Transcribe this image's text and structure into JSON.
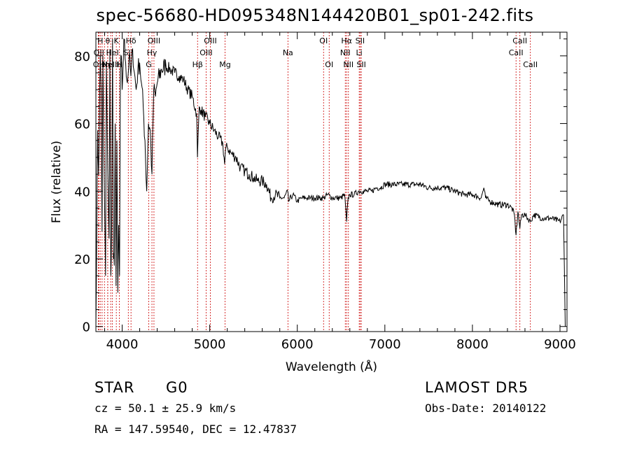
{
  "chart_data": {
    "type": "line",
    "title": "spec-56680-HD095348N144420B01_sp01-242.fits",
    "xlabel": "Wavelength (Å)",
    "ylabel": "Flux (relative)",
    "xlim": [
      3700,
      9080
    ],
    "ylim": [
      -1.5,
      87
    ],
    "xticks": [
      4000,
      5000,
      6000,
      7000,
      8000,
      9000
    ],
    "yticks": [
      0,
      20,
      40,
      60,
      80
    ],
    "tick_labels_x": [
      "4000",
      "5000",
      "6000",
      "7000",
      "8000",
      "9000"
    ],
    "tick_labels_y": [
      "0",
      "20",
      "40",
      "60",
      "80"
    ],
    "grid": false,
    "series": [
      {
        "x": [
          3700,
          3710,
          3720,
          3730,
          3740,
          3750,
          3760,
          3770,
          3780,
          3790,
          3800,
          3810,
          3820,
          3830,
          3840,
          3850,
          3860,
          3870,
          3880,
          3890,
          3900,
          3910,
          3920,
          3930,
          3940,
          3950,
          3960,
          3970,
          3980,
          3990,
          4000,
          4020,
          4040,
          4060,
          4080,
          4100,
          4120,
          4140,
          4160,
          4180,
          4200,
          4220,
          4240,
          4260,
          4280,
          4300,
          4320,
          4340,
          4360,
          4380,
          4400,
          4450,
          4500,
          4550,
          4600,
          4650,
          4700,
          4750,
          4800,
          4850,
          4860,
          4880,
          4900,
          4950,
          5000,
          5050,
          5100,
          5150,
          5170,
          5180,
          5200,
          5250,
          5300,
          5350,
          5400,
          5450,
          5500,
          5550,
          5600,
          5650,
          5700,
          5750,
          5800,
          5850,
          5890,
          5900,
          5950,
          6000,
          6050,
          6100,
          6150,
          6200,
          6250,
          6300,
          6350,
          6400,
          6450,
          6500,
          6540,
          6563,
          6580,
          6600,
          6650,
          6700,
          6750,
          6800,
          6850,
          6900,
          6950,
          7000,
          7100,
          7200,
          7300,
          7400,
          7500,
          7600,
          7700,
          7800,
          7900,
          8000,
          8100,
          8130,
          8150,
          8200,
          8300,
          8400,
          8450,
          8480,
          8498,
          8520,
          8542,
          8560,
          8600,
          8662,
          8700,
          8800,
          8900,
          9000,
          9040,
          9050,
          9060
        ],
        "y": [
          0,
          30,
          58,
          45,
          62,
          80,
          70,
          28,
          80,
          52,
          35,
          15,
          78,
          56,
          40,
          26,
          82,
          15,
          30,
          85,
          20,
          18,
          60,
          12,
          55,
          10,
          30,
          15,
          75,
          80,
          70,
          85,
          78,
          72,
          80,
          74,
          82,
          75,
          70,
          76,
          78,
          72,
          65,
          55,
          40,
          60,
          58,
          45,
          70,
          68,
          72,
          76,
          77,
          76,
          75,
          74,
          73,
          70,
          68,
          63,
          50,
          65,
          64,
          62,
          60,
          58,
          56,
          54,
          48,
          52,
          53,
          51,
          50,
          47,
          46,
          45,
          44,
          43,
          43,
          42,
          38,
          39,
          38,
          38,
          40,
          37,
          39,
          37,
          38,
          38,
          38,
          38,
          38,
          38,
          39,
          38,
          38,
          38,
          39,
          31,
          38,
          39,
          39,
          40,
          40,
          40,
          40,
          41,
          41,
          42,
          42,
          42,
          42,
          42,
          41,
          41,
          41,
          40,
          39,
          39,
          38,
          41,
          38,
          37,
          36,
          36,
          35,
          33,
          27,
          34,
          29,
          33,
          33,
          31,
          33,
          32,
          32,
          31,
          33,
          18,
          0
        ]
      }
    ],
    "line_markers": [
      {
        "w": 3727,
        "label": "OII",
        "row": 3
      },
      {
        "w": 3734,
        "label": "OII",
        "row": 2
      },
      {
        "w": 3750,
        "label": "H",
        "row": 1
      },
      {
        "w": 3771,
        "label": "H",
        "row": 3
      },
      {
        "w": 3798,
        "label": "H",
        "row": 3
      },
      {
        "w": 3835,
        "label": "η",
        "row": 3
      },
      {
        "w": 3835,
        "label": "θ",
        "row": 1
      },
      {
        "w": 3869,
        "label": "NeIII",
        "row": 3
      },
      {
        "w": 3889,
        "label": "HeI",
        "row": 2
      },
      {
        "w": 3933,
        "label": "K",
        "row": 1
      },
      {
        "w": 3968,
        "label": "H",
        "row": 3
      },
      {
        "w": 4070,
        "label": "SII",
        "row": 2
      },
      {
        "w": 4101,
        "label": "Hδ",
        "row": 1
      },
      {
        "w": 4304,
        "label": "G",
        "row": 3
      },
      {
        "w": 4340,
        "label": "Hγ",
        "row": 2
      },
      {
        "w": 4363,
        "label": "OIII",
        "row": 1
      },
      {
        "w": 4861,
        "label": "Hβ",
        "row": 3
      },
      {
        "w": 4959,
        "label": "OIII",
        "row": 2
      },
      {
        "w": 5007,
        "label": "OIII",
        "row": 1
      },
      {
        "w": 5175,
        "label": "Mg",
        "row": 3
      },
      {
        "w": 5893,
        "label": "Na",
        "row": 2
      },
      {
        "w": 6300,
        "label": "OI",
        "row": 1
      },
      {
        "w": 6364,
        "label": "OI",
        "row": 3
      },
      {
        "w": 6548,
        "label": "NII",
        "row": 2
      },
      {
        "w": 6563,
        "label": "Hα",
        "row": 1
      },
      {
        "w": 6584,
        "label": "NII",
        "row": 3
      },
      {
        "w": 6707,
        "label": "Li",
        "row": 2
      },
      {
        "w": 6717,
        "label": "SII",
        "row": 1
      },
      {
        "w": 6731,
        "label": "SII",
        "row": 3
      },
      {
        "w": 8498,
        "label": "CaII",
        "row": 2
      },
      {
        "w": 8542,
        "label": "CaII",
        "row": 1
      },
      {
        "w": 8662,
        "label": "CaII",
        "row": 3
      }
    ]
  },
  "info": {
    "class_label": "STAR",
    "subclass": "G0",
    "survey": "LAMOST DR5",
    "cz": "cz = 50.1 ± 25.9 km/s",
    "obs_date": "Obs-Date: 20140122",
    "coords": "RA = 147.59540, DEC =  12.47837"
  },
  "colors": {
    "spectrum": "#000000",
    "marker_line": "#cc0000",
    "axis": "#000000"
  }
}
